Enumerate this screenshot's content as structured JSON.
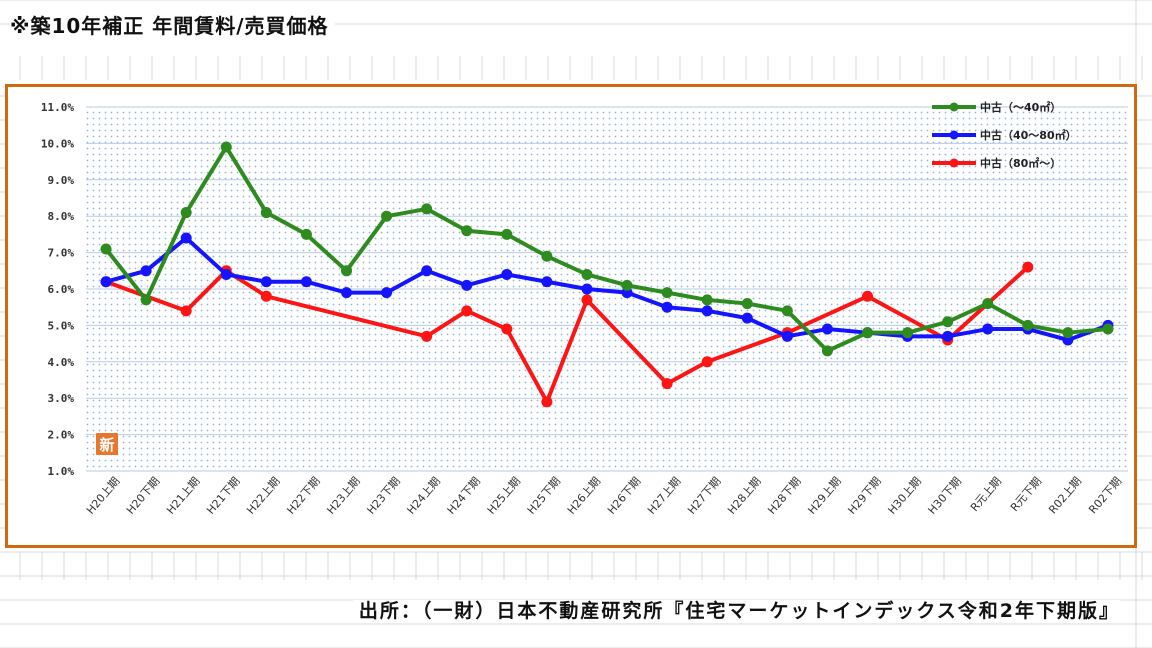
{
  "page": {
    "title": "※築10年補正 年間賃料/売買価格",
    "source": "出所：（一財）日本不動産研究所『住宅マーケットインデックス令和2年下期版』"
  },
  "colors": {
    "frame": "#d06a10",
    "green": "#2e8b1e",
    "blue": "#1414ff",
    "red": "#ff1414",
    "plot_dots": "#8fb4ea"
  },
  "badge": {
    "text": "新",
    "color": "#e8772e"
  },
  "chart_data": {
    "type": "line",
    "title": "",
    "xlabel": "",
    "ylabel": "",
    "ylim": [
      1.0,
      11.0
    ],
    "y_ticks": [
      "1.0%",
      "2.0%",
      "3.0%",
      "4.0%",
      "5.0%",
      "6.0%",
      "7.0%",
      "8.0%",
      "9.0%",
      "10.0%",
      "11.0%"
    ],
    "grid": true,
    "legend_position": "top-right",
    "categories": [
      "H20上期",
      "H20下期",
      "H21上期",
      "H21下期",
      "H22上期",
      "H22下期",
      "H23上期",
      "H23下期",
      "H24上期",
      "H24下期",
      "H25上期",
      "H25下期",
      "H26上期",
      "H26下期",
      "H27上期",
      "H27下期",
      "H28上期",
      "H28下期",
      "H29上期",
      "H29下期",
      "H30上期",
      "H30下期",
      "R元上期",
      "R元下期",
      "R02上期",
      "R02下期"
    ],
    "series": [
      {
        "name": "中古（～40㎡）",
        "color": "#2e8b1e",
        "values": [
          7.1,
          5.7,
          8.1,
          9.9,
          8.1,
          7.5,
          6.5,
          8.0,
          8.2,
          7.6,
          7.5,
          6.9,
          6.4,
          6.1,
          5.9,
          5.7,
          5.6,
          5.4,
          4.3,
          4.8,
          4.8,
          5.1,
          5.6,
          5.0,
          4.8,
          4.9
        ]
      },
      {
        "name": "中古（40～80㎡）",
        "color": "#1414ff",
        "values": [
          6.2,
          6.5,
          7.4,
          6.4,
          6.2,
          6.2,
          5.9,
          5.9,
          6.5,
          6.1,
          6.4,
          6.2,
          6.0,
          5.9,
          5.5,
          5.4,
          5.2,
          4.7,
          4.9,
          4.8,
          4.7,
          4.7,
          4.9,
          4.9,
          4.6,
          5.0
        ]
      },
      {
        "name": "中古（80㎡～）",
        "color": "#ff1414",
        "values": [
          6.2,
          null,
          5.4,
          6.5,
          5.8,
          null,
          null,
          null,
          4.7,
          5.4,
          4.9,
          2.9,
          5.7,
          null,
          3.4,
          4.0,
          null,
          4.8,
          null,
          5.8,
          null,
          4.6,
          null,
          6.6,
          null,
          null
        ]
      }
    ]
  }
}
